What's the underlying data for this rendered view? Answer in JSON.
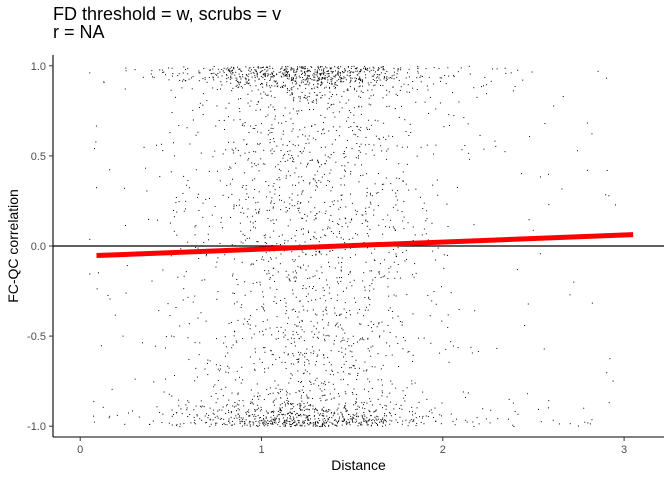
{
  "chart_data": {
    "type": "scatter",
    "title_lines": [
      "FD threshold = w, scrubs = v",
      "r = NA"
    ],
    "xlabel": "Distance",
    "ylabel": "FC-QC correlation",
    "xlim": [
      -0.15,
      3.22
    ],
    "ylim": [
      -1.06,
      1.06
    ],
    "x_ticks": [
      0,
      1,
      2,
      3
    ],
    "x_tick_labels": [
      "0",
      "1",
      "2",
      "3"
    ],
    "y_ticks": [
      -1.0,
      -0.5,
      0.0,
      0.5,
      1.0
    ],
    "y_tick_labels": [
      "-1.0",
      "-0.5",
      "0.0",
      "0.5",
      "1.0"
    ],
    "grid": false,
    "reference_line": {
      "y": 0.0,
      "color": "#000000"
    },
    "trend_line": {
      "x": [
        0.09,
        3.05
      ],
      "y": [
        -0.053,
        0.063
      ],
      "color": "#ff0000"
    },
    "points": {
      "color": "#000000",
      "approx_count": 3200,
      "x_range": [
        0.05,
        3.0
      ],
      "x_center": 1.25,
      "y_range": [
        -1.0,
        1.0
      ],
      "note": "dense vertical band of points between roughly x = 0.4 and 1.9, clustered near y = +1 and y = -1"
    }
  }
}
